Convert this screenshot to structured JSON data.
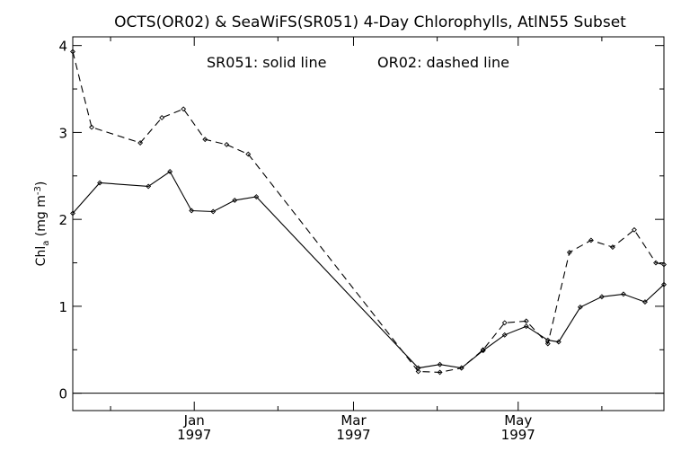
{
  "chart_data": {
    "type": "line",
    "title": "OCTS(OR02) & SeaWiFS(SR051) 4-Day Chlorophylls, AtlN55 Subset",
    "annotations": [
      "SR051: solid line",
      "OR02: dashed line"
    ],
    "ylabel": {
      "main": "Chl",
      "sub": "a",
      "unit": " (mg m",
      "sup": "-3",
      "close": ")"
    },
    "xlim": [
      "1996-11-17",
      "1997-06-24"
    ],
    "ylim": [
      -0.2,
      4.1
    ],
    "y_ticks": [
      0,
      1,
      2,
      3,
      4
    ],
    "x_ticks_major": [
      {
        "date": "1997-01-01",
        "label1": "Jan",
        "label2": "1997"
      },
      {
        "date": "1997-03-01",
        "label1": "Mar",
        "label2": "1997"
      },
      {
        "date": "1997-05-01",
        "label1": "May",
        "label2": "1997"
      }
    ],
    "x_ticks_minor": [
      "1996-12-01",
      "1997-02-01",
      "1997-04-01",
      "1997-06-01"
    ],
    "reference_line": 0,
    "grid": false,
    "series": [
      {
        "name": "SR051",
        "style": "solid",
        "points": [
          [
            "1996-11-17",
            2.07
          ],
          [
            "1996-11-27",
            2.42
          ],
          [
            "1996-12-15",
            2.38
          ],
          [
            "1996-12-23",
            2.55
          ],
          [
            "1996-12-31",
            2.1
          ],
          [
            "1997-01-08",
            2.09
          ],
          [
            "1997-01-16",
            2.22
          ],
          [
            "1997-01-24",
            2.26
          ],
          [
            "1997-03-25",
            0.29
          ],
          [
            "1997-04-02",
            0.33
          ],
          [
            "1997-04-10",
            0.29
          ],
          [
            "1997-04-18",
            0.49
          ],
          [
            "1997-04-26",
            0.67
          ],
          [
            "1997-05-04",
            0.77
          ],
          [
            "1997-05-12",
            0.61
          ],
          [
            "1997-05-16",
            0.59
          ],
          [
            "1997-05-24",
            0.99
          ],
          [
            "1997-06-01",
            1.11
          ],
          [
            "1997-06-09",
            1.14
          ],
          [
            "1997-06-17",
            1.05
          ],
          [
            "1997-06-24",
            1.25
          ]
        ]
      },
      {
        "name": "OR02",
        "style": "dashed",
        "points": [
          [
            "1996-11-17",
            3.93
          ],
          [
            "1996-11-24",
            3.06
          ],
          [
            "1996-12-12",
            2.88
          ],
          [
            "1996-12-20",
            3.17
          ],
          [
            "1996-12-28",
            3.27
          ],
          [
            "1997-01-05",
            2.92
          ],
          [
            "1997-01-13",
            2.86
          ],
          [
            "1997-01-21",
            2.75
          ],
          [
            "1997-03-25",
            0.25
          ],
          [
            "1997-04-02",
            0.24
          ],
          [
            "1997-04-10",
            0.29
          ],
          [
            "1997-04-18",
            0.5
          ],
          [
            "1997-04-26",
            0.81
          ],
          [
            "1997-05-04",
            0.83
          ],
          [
            "1997-05-12",
            0.57
          ],
          [
            "1997-05-20",
            1.62
          ],
          [
            "1997-05-28",
            1.76
          ],
          [
            "1997-06-05",
            1.68
          ],
          [
            "1997-06-13",
            1.88
          ],
          [
            "1997-06-21",
            1.5
          ],
          [
            "1997-06-24",
            1.48
          ]
        ]
      }
    ]
  }
}
